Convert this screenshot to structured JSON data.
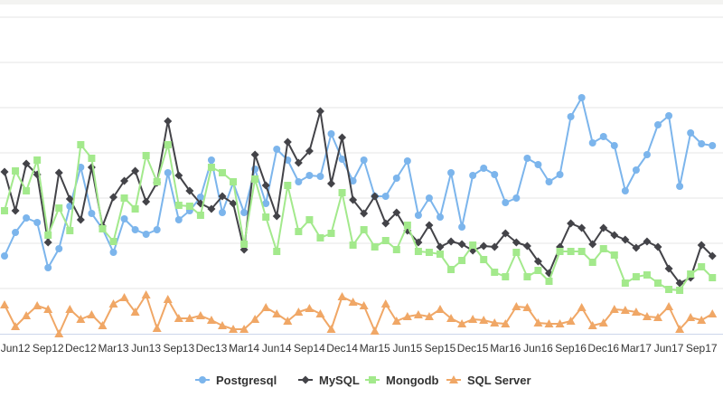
{
  "chart_data": {
    "type": "line",
    "title": "",
    "xlabel": "",
    "ylabel": "",
    "ylim": [
      0,
      7
    ],
    "grid": true,
    "legend_position": "bottom-center",
    "categories": [
      "May12",
      "Jun12",
      "Jul12",
      "Aug12",
      "Sep12",
      "Oct12",
      "Nov12",
      "Dec12",
      "Jan13",
      "Feb13",
      "Mar13",
      "Apr13",
      "May13",
      "Jun13",
      "Jul13",
      "Aug13",
      "Sep13",
      "Oct13",
      "Nov13",
      "Dec13",
      "Jan14",
      "Feb14",
      "Mar14",
      "Apr14",
      "May14",
      "Jun14",
      "Jul14",
      "Aug14",
      "Sep14",
      "Oct14",
      "Nov14",
      "Dec14",
      "Jan15",
      "Feb15",
      "Mar15",
      "Apr15",
      "May15",
      "Jun15",
      "Jul15",
      "Aug15",
      "Sep15",
      "Oct15",
      "Nov15",
      "Dec15",
      "Jan16",
      "Feb16",
      "Mar16",
      "Apr16",
      "May16",
      "Jun16",
      "Jul16",
      "Aug16",
      "Sep16",
      "Oct16",
      "Nov16",
      "Dec16",
      "Jan17",
      "Feb17",
      "Mar17",
      "Apr17",
      "May17",
      "Jun17",
      "Jul17",
      "Aug17",
      "Sep17",
      "Oct17"
    ],
    "tick_labels": [
      "Jun12",
      "Sep12",
      "Dec12",
      "Mar13",
      "Jun13",
      "Sep13",
      "Dec13",
      "Mar14",
      "Jun14",
      "Sep14",
      "Dec14",
      "Mar15",
      "Jun15",
      "Sep15",
      "Dec15",
      "Mar16",
      "Jun16",
      "Sep16",
      "Dec16",
      "Mar17",
      "Jun17",
      "Sep17"
    ],
    "series": [
      {
        "name": "Postgresql",
        "color": "#7cb5ec",
        "marker": "circle",
        "values": [
          1.72,
          2.24,
          2.56,
          2.46,
          1.46,
          1.88,
          2.82,
          3.68,
          2.66,
          2.32,
          1.8,
          2.54,
          2.3,
          2.2,
          2.3,
          3.56,
          2.52,
          2.72,
          3.02,
          3.84,
          2.68,
          3.34,
          2.68,
          3.64,
          2.88,
          4.08,
          3.84,
          3.36,
          3.5,
          3.48,
          4.42,
          3.86,
          3.38,
          3.84,
          3.04,
          3.04,
          3.44,
          3.82,
          2.62,
          3.0,
          2.58,
          3.56,
          2.36,
          3.5,
          3.66,
          3.52,
          2.9,
          3.0,
          3.88,
          3.74,
          3.36,
          3.52,
          4.8,
          5.22,
          4.22,
          4.36,
          4.16,
          3.16,
          3.62,
          3.96,
          4.62,
          4.82,
          3.26,
          4.44,
          4.2,
          4.16
        ]
      },
      {
        "name": "MySQL",
        "color": "#434348",
        "marker": "diamond",
        "values": [
          3.58,
          2.72,
          3.76,
          3.52,
          2.02,
          3.56,
          2.98,
          2.52,
          3.68,
          2.38,
          3.02,
          3.38,
          3.6,
          2.92,
          3.34,
          4.7,
          3.5,
          3.16,
          2.88,
          2.76,
          3.04,
          2.88,
          1.86,
          3.96,
          3.28,
          2.6,
          4.24,
          3.78,
          4.04,
          4.92,
          3.32,
          4.34,
          2.96,
          2.66,
          3.04,
          2.44,
          2.68,
          2.28,
          2.02,
          2.4,
          1.92,
          2.04,
          1.98,
          1.84,
          1.94,
          1.92,
          2.22,
          2.02,
          1.94,
          1.6,
          1.34,
          1.92,
          2.44,
          2.34,
          1.98,
          2.34,
          2.18,
          2.08,
          1.9,
          2.04,
          1.92,
          1.44,
          1.12,
          1.24,
          1.96,
          1.72
        ]
      },
      {
        "name": "Mongodb",
        "color": "#a3e98c",
        "marker": "square",
        "values": [
          2.72,
          3.6,
          3.16,
          3.84,
          2.18,
          2.78,
          2.28,
          4.18,
          3.88,
          2.32,
          2.04,
          3.0,
          2.76,
          3.94,
          3.36,
          4.18,
          2.84,
          2.82,
          2.62,
          3.68,
          3.56,
          3.36,
          1.98,
          3.42,
          2.58,
          1.82,
          3.28,
          2.26,
          2.52,
          2.12,
          2.22,
          3.12,
          1.96,
          2.3,
          1.92,
          2.06,
          1.86,
          2.4,
          1.82,
          1.8,
          1.76,
          1.42,
          1.62,
          1.96,
          1.64,
          1.36,
          1.26,
          1.8,
          1.26,
          1.4,
          1.16,
          1.82,
          1.82,
          1.82,
          1.58,
          1.88,
          1.74,
          1.12,
          1.26,
          1.3,
          1.12,
          0.98,
          0.96,
          1.32,
          1.48,
          1.24
        ]
      },
      {
        "name": "SQL Server",
        "color": "#f0a766",
        "marker": "triangle",
        "values": [
          0.64,
          0.16,
          0.4,
          0.62,
          0.54,
          0,
          0.54,
          0.32,
          0.42,
          0.18,
          0.66,
          0.8,
          0.48,
          0.86,
          0.12,
          0.76,
          0.34,
          0.34,
          0.4,
          0.3,
          0.18,
          0.1,
          0.1,
          0.32,
          0.58,
          0.44,
          0.28,
          0.48,
          0.56,
          0.44,
          0.1,
          0.82,
          0.7,
          0.62,
          0.06,
          0.66,
          0.28,
          0.38,
          0.42,
          0.38,
          0.54,
          0.34,
          0.22,
          0.32,
          0.3,
          0.24,
          0.22,
          0.6,
          0.58,
          0.24,
          0.22,
          0.22,
          0.28,
          0.58,
          0.18,
          0.24,
          0.54,
          0.52,
          0.48,
          0.38,
          0.36,
          0.6,
          0.1,
          0.36,
          0.3,
          0.44
        ]
      }
    ]
  }
}
